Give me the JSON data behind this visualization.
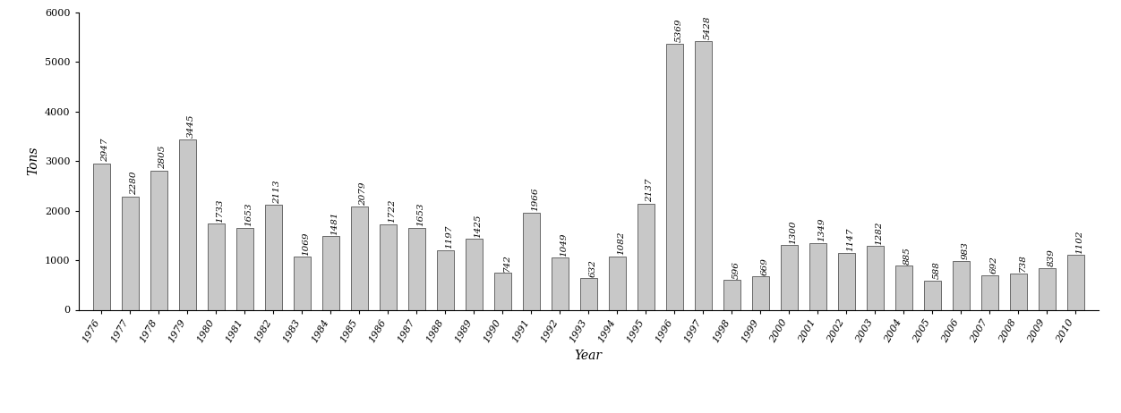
{
  "years": [
    1976,
    1977,
    1978,
    1979,
    1980,
    1981,
    1982,
    1983,
    1984,
    1985,
    1986,
    1987,
    1988,
    1989,
    1990,
    1991,
    1992,
    1993,
    1994,
    1995,
    1996,
    1997,
    1998,
    1999,
    2000,
    2001,
    2002,
    2003,
    2004,
    2005,
    2006,
    2007,
    2008,
    2009,
    2010
  ],
  "values": [
    2947,
    2280,
    2805,
    3445,
    1733,
    1653,
    2113,
    1069,
    1481,
    2079,
    1722,
    1653,
    1197,
    1425,
    742,
    1966,
    1049,
    632,
    1082,
    2137,
    5369,
    5428,
    596,
    669,
    1300,
    1349,
    1147,
    1282,
    885,
    588,
    983,
    692,
    738,
    839,
    1102
  ],
  "bar_color": "#c8c8c8",
  "bar_edgecolor": "#555555",
  "ylabel": "Tons",
  "xlabel": "Year",
  "ylim": [
    0,
    6000
  ],
  "yticks": [
    0,
    1000,
    2000,
    3000,
    4000,
    5000,
    6000
  ],
  "label_fontsize": 7.5,
  "axis_label_fontsize": 10,
  "tick_label_fontsize": 8,
  "background_color": "#ffffff"
}
